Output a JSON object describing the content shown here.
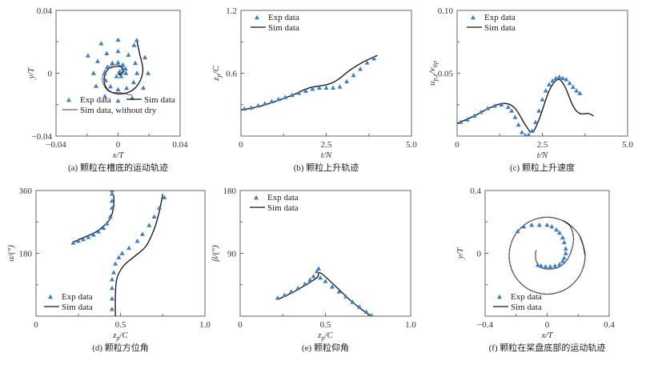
{
  "colors": {
    "exp": "#3a7dc9",
    "sim": "#111111",
    "axis": "#666666"
  },
  "chart_data": [
    {
      "id": "a",
      "type": "scatter",
      "caption": "(a) 颗粒在槽底的运动轨迹",
      "xlabel": "x/T",
      "ylabel": "y/T",
      "xlim": [
        -0.04,
        0.04
      ],
      "ylim": [
        -0.04,
        0.04
      ],
      "xticks": [
        -0.04,
        0,
        0.04
      ],
      "yticks": [
        -0.04,
        0,
        0.04
      ],
      "xtick_labels": [
        "−0.04",
        "0",
        "0.04"
      ],
      "ytick_labels": [
        "−0.04",
        "0",
        "0.04"
      ],
      "legend": {
        "placement": "bottom-left",
        "entries": [
          "Exp data",
          "Sim data",
          "Sim data, without dry"
        ]
      },
      "exp": [
        [
          0.005,
          0
        ],
        [
          0.0048,
          0.0028
        ],
        [
          0.0031,
          0.0054
        ],
        [
          0,
          0.0068
        ],
        [
          -0.0037,
          0.0064
        ],
        [
          -0.0069,
          0.004
        ],
        [
          -0.0086,
          0
        ],
        [
          -0.008,
          -0.0046
        ],
        [
          -0.0049,
          -0.0085
        ],
        [
          0,
          -0.0104
        ],
        [
          0.0055,
          -0.0095
        ],
        [
          0.01,
          -0.0058
        ],
        [
          0.0122,
          0
        ],
        [
          0.0111,
          0.0064
        ],
        [
          0.0067,
          0.0116
        ],
        [
          0,
          0.014
        ],
        [
          -0.0073,
          0.0126
        ],
        [
          -0.0132,
          0.0076
        ],
        [
          -0.0158,
          0
        ],
        [
          -0.0142,
          -0.0082
        ],
        [
          -0.0085,
          -0.0147
        ],
        [
          0,
          -0.0176
        ],
        [
          0.0091,
          -0.0158
        ],
        [
          0.0163,
          -0.0094
        ],
        [
          0.0194,
          0
        ],
        [
          0.0173,
          0.01
        ],
        [
          0.0103,
          0.0178
        ],
        [
          0,
          0.0212
        ],
        [
          -0.0109,
          0.0189
        ],
        [
          -0.0194,
          0.0112
        ],
        [
          0.001,
          0.001
        ],
        [
          0.002,
          -0.002
        ],
        [
          0.003,
          0.003
        ],
        [
          -0.001,
          -0.002
        ],
        [
          0.012,
          0.021
        ]
      ],
      "sim": [
        [
          [
            0.012,
            0.021
          ],
          [
            0.014,
            0.012
          ],
          [
            0.016,
            0.002
          ],
          [
            0.013,
            -0.007
          ],
          [
            0.007,
            -0.012
          ],
          [
            -0.001,
            -0.013
          ],
          [
            -0.007,
            -0.01
          ],
          [
            -0.009,
            -0.004
          ],
          [
            -0.007,
            0.002
          ],
          [
            -0.003,
            0.004
          ],
          [
            0.002,
            0.004
          ],
          [
            0.003,
            0.001
          ],
          [
            0.001,
            -0.001
          ],
          [
            0,
            0
          ]
        ]
      ],
      "sim2": [
        [
          [
            0.009,
            -0.014
          ],
          [
            0.002,
            -0.0125
          ],
          [
            -0.006,
            -0.0115
          ],
          [
            -0.01,
            -0.005
          ],
          [
            -0.0085,
            0.002
          ],
          [
            -0.004,
            0.005
          ],
          [
            0.001,
            0.005
          ],
          [
            0.004,
            0.002
          ],
          [
            0.002,
            -0.001
          ],
          [
            0,
            0.001
          ]
        ]
      ]
    },
    {
      "id": "b",
      "type": "scatter",
      "caption": "(b) 颗粒上升轨迹",
      "xlabel": "t/N",
      "ylabel": "z_p/C",
      "xlim": [
        0,
        5
      ],
      "ylim": [
        0,
        1.2
      ],
      "xticks": [
        0,
        2.5,
        5
      ],
      "yticks": [
        0.6,
        1.2
      ],
      "xtick_labels": [
        "0",
        "2.5",
        "5.0"
      ],
      "ytick_labels": [
        "0.6",
        "1.2"
      ],
      "legend": {
        "placement": "top-left",
        "entries": [
          "Exp data",
          "Sim data"
        ]
      },
      "exp": [
        [
          0.1,
          0.26
        ],
        [
          0.3,
          0.27
        ],
        [
          0.5,
          0.29
        ],
        [
          0.7,
          0.31
        ],
        [
          0.9,
          0.33
        ],
        [
          1.1,
          0.35
        ],
        [
          1.3,
          0.37
        ],
        [
          1.5,
          0.39
        ],
        [
          1.7,
          0.41
        ],
        [
          1.9,
          0.43
        ],
        [
          2.1,
          0.45
        ],
        [
          2.3,
          0.46
        ],
        [
          2.5,
          0.46
        ],
        [
          2.7,
          0.46
        ],
        [
          2.9,
          0.47
        ],
        [
          3.1,
          0.52
        ],
        [
          3.3,
          0.58
        ],
        [
          3.5,
          0.64
        ],
        [
          3.7,
          0.7
        ],
        [
          3.9,
          0.74
        ]
      ],
      "sim": [
        [
          [
            0,
            0.25
          ],
          [
            0.5,
            0.28
          ],
          [
            1,
            0.33
          ],
          [
            1.5,
            0.39
          ],
          [
            2,
            0.46
          ],
          [
            2.5,
            0.49
          ],
          [
            2.8,
            0.53
          ],
          [
            3.2,
            0.63
          ],
          [
            3.6,
            0.71
          ],
          [
            4,
            0.77
          ]
        ]
      ]
    },
    {
      "id": "c",
      "type": "scatter",
      "caption": "(c) 颗粒上升速度",
      "xlabel": "t/N",
      "ylabel": "u_{p,z}/v_{tip}",
      "xlim": [
        0,
        5
      ],
      "ylim": [
        0,
        0.1
      ],
      "xticks": [
        0,
        2.5,
        5
      ],
      "yticks": [
        0.05,
        0.1
      ],
      "xtick_labels": [
        "0",
        "2.5",
        "5.0"
      ],
      "ytick_labels": [
        "0.05",
        "0.10"
      ],
      "legend": {
        "placement": "top-left",
        "entries": [
          "Exp data",
          "Sim data"
        ]
      },
      "exp": [
        [
          0.1,
          0.011
        ],
        [
          0.3,
          0.013
        ],
        [
          0.5,
          0.016
        ],
        [
          0.7,
          0.019
        ],
        [
          0.9,
          0.022
        ],
        [
          1.1,
          0.024
        ],
        [
          1.3,
          0.025
        ],
        [
          1.5,
          0.023
        ],
        [
          1.6,
          0.02
        ],
        [
          1.7,
          0.015
        ],
        [
          1.8,
          0.009
        ],
        [
          1.9,
          0.003
        ],
        [
          2.0,
          0.0005
        ],
        [
          2.1,
          0.001
        ],
        [
          2.2,
          0.004
        ],
        [
          2.3,
          0.011
        ],
        [
          2.4,
          0.02
        ],
        [
          2.5,
          0.029
        ],
        [
          2.6,
          0.036
        ],
        [
          2.7,
          0.041
        ],
        [
          2.8,
          0.044
        ],
        [
          2.9,
          0.046
        ],
        [
          3.0,
          0.047
        ],
        [
          3.1,
          0.046
        ],
        [
          3.2,
          0.045
        ],
        [
          3.3,
          0.042
        ],
        [
          3.4,
          0.039
        ],
        [
          3.5,
          0.036
        ],
        [
          3.6,
          0.034
        ]
      ],
      "sim": [
        [
          [
            0,
            0.01
          ],
          [
            0.5,
            0.016
          ],
          [
            1,
            0.023
          ],
          [
            1.4,
            0.026
          ],
          [
            1.7,
            0.022
          ],
          [
            2.0,
            0.009
          ],
          [
            2.2,
            0.003
          ],
          [
            2.4,
            0.013
          ],
          [
            2.7,
            0.036
          ],
          [
            2.95,
            0.045
          ],
          [
            3.15,
            0.04
          ],
          [
            3.4,
            0.024
          ],
          [
            3.6,
            0.018
          ],
          [
            3.85,
            0.018
          ],
          [
            4.0,
            0.016
          ]
        ]
      ]
    },
    {
      "id": "d",
      "type": "scatter",
      "caption": "(d) 颗粒方位角",
      "xlabel": "z_p/C",
      "ylabel": "α/(°)",
      "xlim": [
        0,
        1
      ],
      "ylim": [
        0,
        360
      ],
      "xticks": [
        0,
        0.5,
        1
      ],
      "yticks": [
        180,
        360
      ],
      "xtick_labels": [
        "0",
        "0.5",
        "1.0"
      ],
      "ytick_labels": [
        "180",
        "360"
      ],
      "legend": {
        "placement": "bottom-left",
        "entries": [
          "Exp data",
          "Sim data"
        ]
      },
      "exp": [
        [
          0.22,
          210
        ],
        [
          0.25,
          215
        ],
        [
          0.28,
          220
        ],
        [
          0.31,
          226
        ],
        [
          0.34,
          233
        ],
        [
          0.37,
          242
        ],
        [
          0.4,
          252
        ],
        [
          0.42,
          265
        ],
        [
          0.44,
          285
        ],
        [
          0.45,
          310
        ],
        [
          0.45,
          330
        ],
        [
          0.45,
          350
        ],
        [
          0.45,
          360
        ],
        [
          0.45,
          20
        ],
        [
          0.45,
          50
        ],
        [
          0.45,
          80
        ],
        [
          0.45,
          105
        ],
        [
          0.46,
          125
        ],
        [
          0.47,
          150
        ],
        [
          0.49,
          168
        ],
        [
          0.51,
          180
        ],
        [
          0.55,
          195
        ],
        [
          0.6,
          215
        ],
        [
          0.63,
          235
        ],
        [
          0.67,
          260
        ],
        [
          0.7,
          285
        ],
        [
          0.73,
          310
        ],
        [
          0.76,
          340
        ]
      ],
      "sim": [
        [
          [
            0.22,
            212
          ],
          [
            0.28,
            225
          ],
          [
            0.35,
            240
          ],
          [
            0.4,
            258
          ],
          [
            0.44,
            280
          ],
          [
            0.46,
            315
          ],
          [
            0.46,
            345
          ]
        ],
        [
          [
            0.47,
            0
          ],
          [
            0.47,
            60
          ],
          [
            0.48,
            110
          ],
          [
            0.52,
            145
          ],
          [
            0.58,
            170
          ],
          [
            0.65,
            200
          ],
          [
            0.7,
            250
          ],
          [
            0.73,
            300
          ],
          [
            0.75,
            350
          ]
        ]
      ]
    },
    {
      "id": "e",
      "type": "scatter",
      "caption": "(e) 颗粒仰角",
      "xlabel": "z_p/C",
      "ylabel": "β/(°)",
      "xlim": [
        0,
        1
      ],
      "ylim": [
        0,
        180
      ],
      "xticks": [
        0,
        0.5,
        1
      ],
      "yticks": [
        90,
        180
      ],
      "xtick_labels": [
        "0",
        "0.5",
        "1.0"
      ],
      "ytick_labels": [
        "90",
        "180"
      ],
      "legend": {
        "placement": "top-left",
        "entries": [
          "Exp data",
          "Sim data"
        ]
      },
      "exp": [
        [
          0.22,
          26
        ],
        [
          0.26,
          30
        ],
        [
          0.3,
          35
        ],
        [
          0.34,
          40
        ],
        [
          0.38,
          46
        ],
        [
          0.41,
          52
        ],
        [
          0.43,
          57
        ],
        [
          0.45,
          64
        ],
        [
          0.46,
          68
        ],
        [
          0.47,
          55
        ],
        [
          0.5,
          50
        ],
        [
          0.54,
          42
        ],
        [
          0.58,
          35
        ],
        [
          0.62,
          28
        ],
        [
          0.66,
          20
        ],
        [
          0.7,
          13
        ],
        [
          0.74,
          6
        ],
        [
          0.77,
          1
        ]
      ],
      "sim": [
        [
          [
            0.22,
            24
          ],
          [
            0.3,
            33
          ],
          [
            0.38,
            44
          ],
          [
            0.45,
            55
          ],
          [
            0.47,
            62
          ],
          [
            0.55,
            45
          ],
          [
            0.65,
            22
          ],
          [
            0.75,
            3
          ],
          [
            0.78,
            0
          ]
        ]
      ]
    },
    {
      "id": "f",
      "type": "scatter",
      "caption": "(f) 颗粒在桨盘底部的运动轨迹",
      "xlabel": "x/T",
      "ylabel": "y/T",
      "xlim": [
        -0.4,
        0.4
      ],
      "ylim": [
        -0.4,
        0.4
      ],
      "xticks": [
        -0.4,
        0,
        0.4
      ],
      "yticks": [
        0,
        0.4
      ],
      "xtick_labels": [
        "−0.4",
        "0",
        "0.4"
      ],
      "ytick_labels": [
        "0",
        "0.4"
      ],
      "legend": {
        "placement": "bottom-left",
        "entries": [
          "Exp data",
          "Sim data"
        ]
      },
      "exp": [
        [
          -0.19,
          0.14
        ],
        [
          -0.15,
          0.17
        ],
        [
          -0.1,
          0.18
        ],
        [
          -0.05,
          0.18
        ],
        [
          0,
          0.18
        ],
        [
          0.03,
          0.17
        ],
        [
          0.06,
          0.15
        ],
        [
          0.08,
          0.13
        ],
        [
          0.1,
          0.1
        ],
        [
          0.11,
          0.07
        ],
        [
          0.12,
          0.03
        ],
        [
          0.12,
          0
        ],
        [
          0.11,
          -0.03
        ],
        [
          0.1,
          -0.05
        ],
        [
          0.08,
          -0.07
        ],
        [
          0.05,
          -0.08
        ],
        [
          0.02,
          -0.085
        ],
        [
          -0.01,
          -0.085
        ],
        [
          -0.04,
          -0.08
        ],
        [
          -0.06,
          -0.075
        ]
      ],
      "sim": [
        [
          [
            0.245,
            -0.015
          ],
          [
            0.212,
            0.108
          ],
          [
            0.1225,
            0.197
          ],
          [
            0,
            0.23
          ],
          [
            -0.1225,
            0.197
          ],
          [
            -0.212,
            0.108
          ],
          [
            -0.245,
            -0.015
          ],
          [
            -0.212,
            -0.1375
          ],
          [
            -0.1225,
            -0.227
          ],
          [
            0,
            -0.26
          ],
          [
            0.1225,
            -0.227
          ],
          [
            0.212,
            -0.1375
          ],
          [
            0.245,
            -0.015
          ],
          [
            0.212,
            0.108
          ]
        ],
        [
          [
            0.1,
            0.21
          ],
          [
            0.15,
            0.17
          ],
          [
            0.17,
            0.1
          ],
          [
            0.16,
            0.03
          ],
          [
            0.13,
            -0.04
          ],
          [
            0.08,
            -0.085
          ],
          [
            0.02,
            -0.1
          ],
          [
            -0.04,
            -0.09
          ],
          [
            -0.07,
            -0.05
          ],
          [
            -0.075,
            0
          ],
          [
            -0.07,
            0.02
          ]
        ]
      ]
    }
  ]
}
